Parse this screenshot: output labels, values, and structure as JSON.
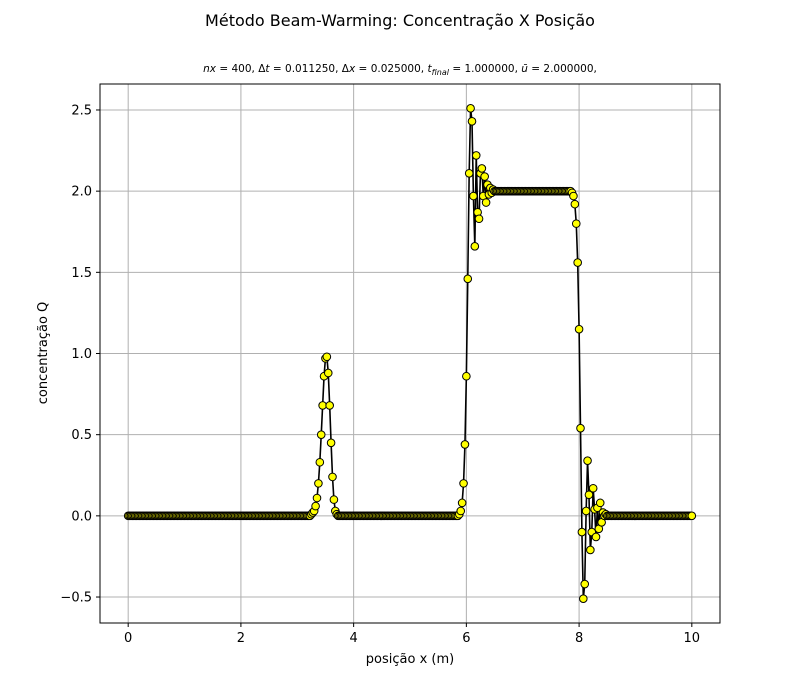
{
  "figure": {
    "suptitle": "Método Beam-Warming: Concentração X Posição",
    "params": {
      "nx": "400",
      "dt": "0.011250",
      "dx": "0.025000",
      "tfinal": "1.000000",
      "ubar": "2.000000"
    }
  },
  "colors": {
    "line": "#000000",
    "marker_fill": "#ffff00",
    "marker_edge": "#000000",
    "grid": "#b0b0b0"
  },
  "chart_data": {
    "type": "line",
    "xlabel": "posição x (m)",
    "ylabel": "concentração Q",
    "xlim": [
      -0.5,
      10.5
    ],
    "ylim": [
      -0.66,
      2.66
    ],
    "xticks": [
      0,
      2,
      4,
      6,
      8,
      10
    ],
    "xtick_labels": [
      "0",
      "2",
      "4",
      "6",
      "8",
      "10"
    ],
    "yticks": [
      -0.5,
      0.0,
      0.5,
      1.0,
      1.5,
      2.0,
      2.5
    ],
    "ytick_labels": [
      "−0.5",
      "0.0",
      "0.5",
      "1.0",
      "1.5",
      "2.0",
      "2.5"
    ],
    "grid": true,
    "marker": "circle",
    "x_start": 0,
    "x_step": 0.025,
    "n_points": 401,
    "baseline": 0,
    "segments": [
      {
        "name": "gaussian",
        "x": [
          3.2,
          3.225,
          3.25,
          3.275,
          3.3,
          3.325,
          3.35,
          3.375,
          3.4,
          3.425,
          3.45,
          3.475,
          3.5,
          3.525,
          3.55,
          3.575,
          3.6,
          3.625,
          3.65,
          3.675,
          3.7,
          3.725,
          3.75
        ],
        "y": [
          0.0,
          0.0,
          0.01,
          0.02,
          0.03,
          0.06,
          0.11,
          0.2,
          0.33,
          0.5,
          0.68,
          0.86,
          0.97,
          0.98,
          0.88,
          0.68,
          0.45,
          0.24,
          0.1,
          0.03,
          0.01,
          0.0,
          0.0
        ]
      },
      {
        "name": "square-rise",
        "x": [
          5.85,
          5.875,
          5.9,
          5.925,
          5.95,
          5.975,
          6.0,
          6.025,
          6.05,
          6.075,
          6.1,
          6.125,
          6.15,
          6.175,
          6.2,
          6.225,
          6.25,
          6.275,
          6.3,
          6.325,
          6.35,
          6.375,
          6.4,
          6.425,
          6.45,
          6.475,
          6.5
        ],
        "y": [
          0.0,
          0.01,
          0.03,
          0.08,
          0.2,
          0.44,
          0.86,
          1.46,
          2.11,
          2.51,
          2.43,
          1.97,
          1.66,
          2.22,
          1.87,
          1.83,
          2.11,
          2.14,
          1.97,
          2.09,
          1.93,
          2.04,
          1.98,
          2.02,
          1.99,
          2.01,
          2.0
        ]
      },
      {
        "name": "square-top",
        "x_from": 6.525,
        "x_to": 7.8,
        "value": 2.0
      },
      {
        "name": "square-fall",
        "x": [
          7.825,
          7.85,
          7.875,
          7.9,
          7.925,
          7.95,
          7.975,
          8.0,
          8.025,
          8.05,
          8.075,
          8.1,
          8.125,
          8.15,
          8.175,
          8.2,
          8.225,
          8.25,
          8.275,
          8.3,
          8.325,
          8.35,
          8.375,
          8.4,
          8.425,
          8.45,
          8.475,
          8.5,
          8.525,
          8.55
        ],
        "y": [
          2.0,
          2.0,
          1.99,
          1.97,
          1.92,
          1.8,
          1.56,
          1.15,
          0.54,
          -0.1,
          -0.51,
          -0.42,
          0.03,
          0.34,
          0.13,
          -0.21,
          -0.1,
          0.17,
          0.04,
          -0.13,
          0.05,
          -0.08,
          0.08,
          -0.04,
          0.02,
          0.0,
          0.01,
          0.0,
          0.0,
          0.0
        ]
      }
    ]
  }
}
